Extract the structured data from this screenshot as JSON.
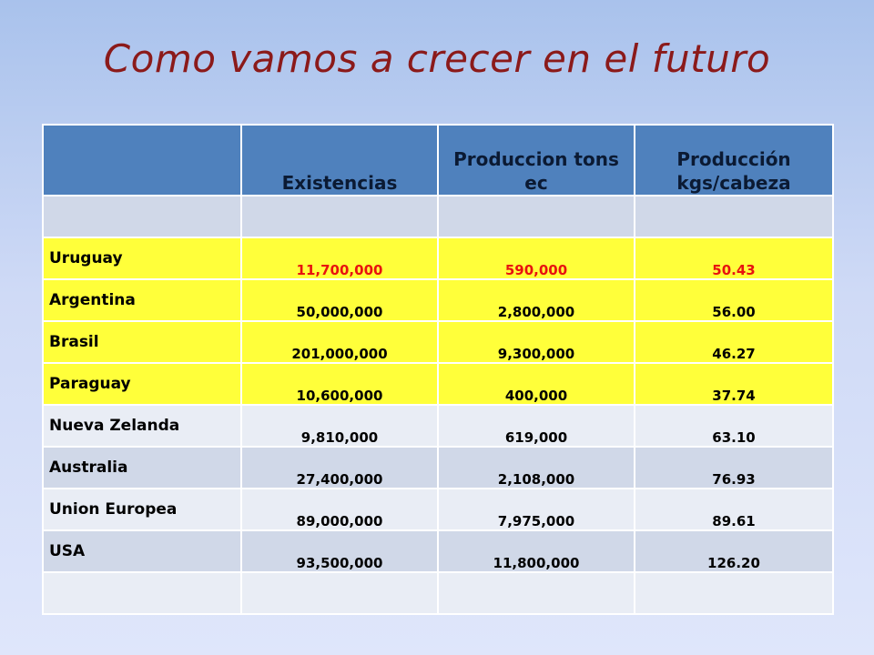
{
  "title": "Como vamos a crecer en el futuro",
  "table": {
    "headers": [
      "",
      "Existencias",
      "Produccion tons ec",
      "Producción kgs/cabeza"
    ],
    "rows": [
      {
        "country": "",
        "existencias": "",
        "produccion": "",
        "kgs": "",
        "style": "dark"
      },
      {
        "country": "Uruguay",
        "existencias": "11,700,000",
        "produccion": "590,000",
        "kgs": "50.43",
        "style": "yellow hl"
      },
      {
        "country": "Argentina",
        "existencias": "50,000,000",
        "produccion": "2,800,000",
        "kgs": "56.00",
        "style": "yellow"
      },
      {
        "country": "Brasil",
        "existencias": "201,000,000",
        "produccion": "9,300,000",
        "kgs": "46.27",
        "style": "yellow"
      },
      {
        "country": "Paraguay",
        "existencias": "10,600,000",
        "produccion": "400,000",
        "kgs": "37.74",
        "style": "yellow"
      },
      {
        "country": "Nueva Zelanda",
        "existencias": "9,810,000",
        "produccion": "619,000",
        "kgs": "63.10",
        "style": "light"
      },
      {
        "country": "Australia",
        "existencias": "27,400,000",
        "produccion": "2,108,000",
        "kgs": "76.93",
        "style": "dark"
      },
      {
        "country": "Union Europea",
        "existencias": "89,000,000",
        "produccion": "7,975,000",
        "kgs": "89.61",
        "style": "light"
      },
      {
        "country": "USA",
        "existencias": "93,500,000",
        "produccion": "11,800,000",
        "kgs": "126.20",
        "style": "dark"
      },
      {
        "country": "",
        "existencias": "",
        "produccion": "",
        "kgs": "",
        "style": "light"
      }
    ]
  }
}
